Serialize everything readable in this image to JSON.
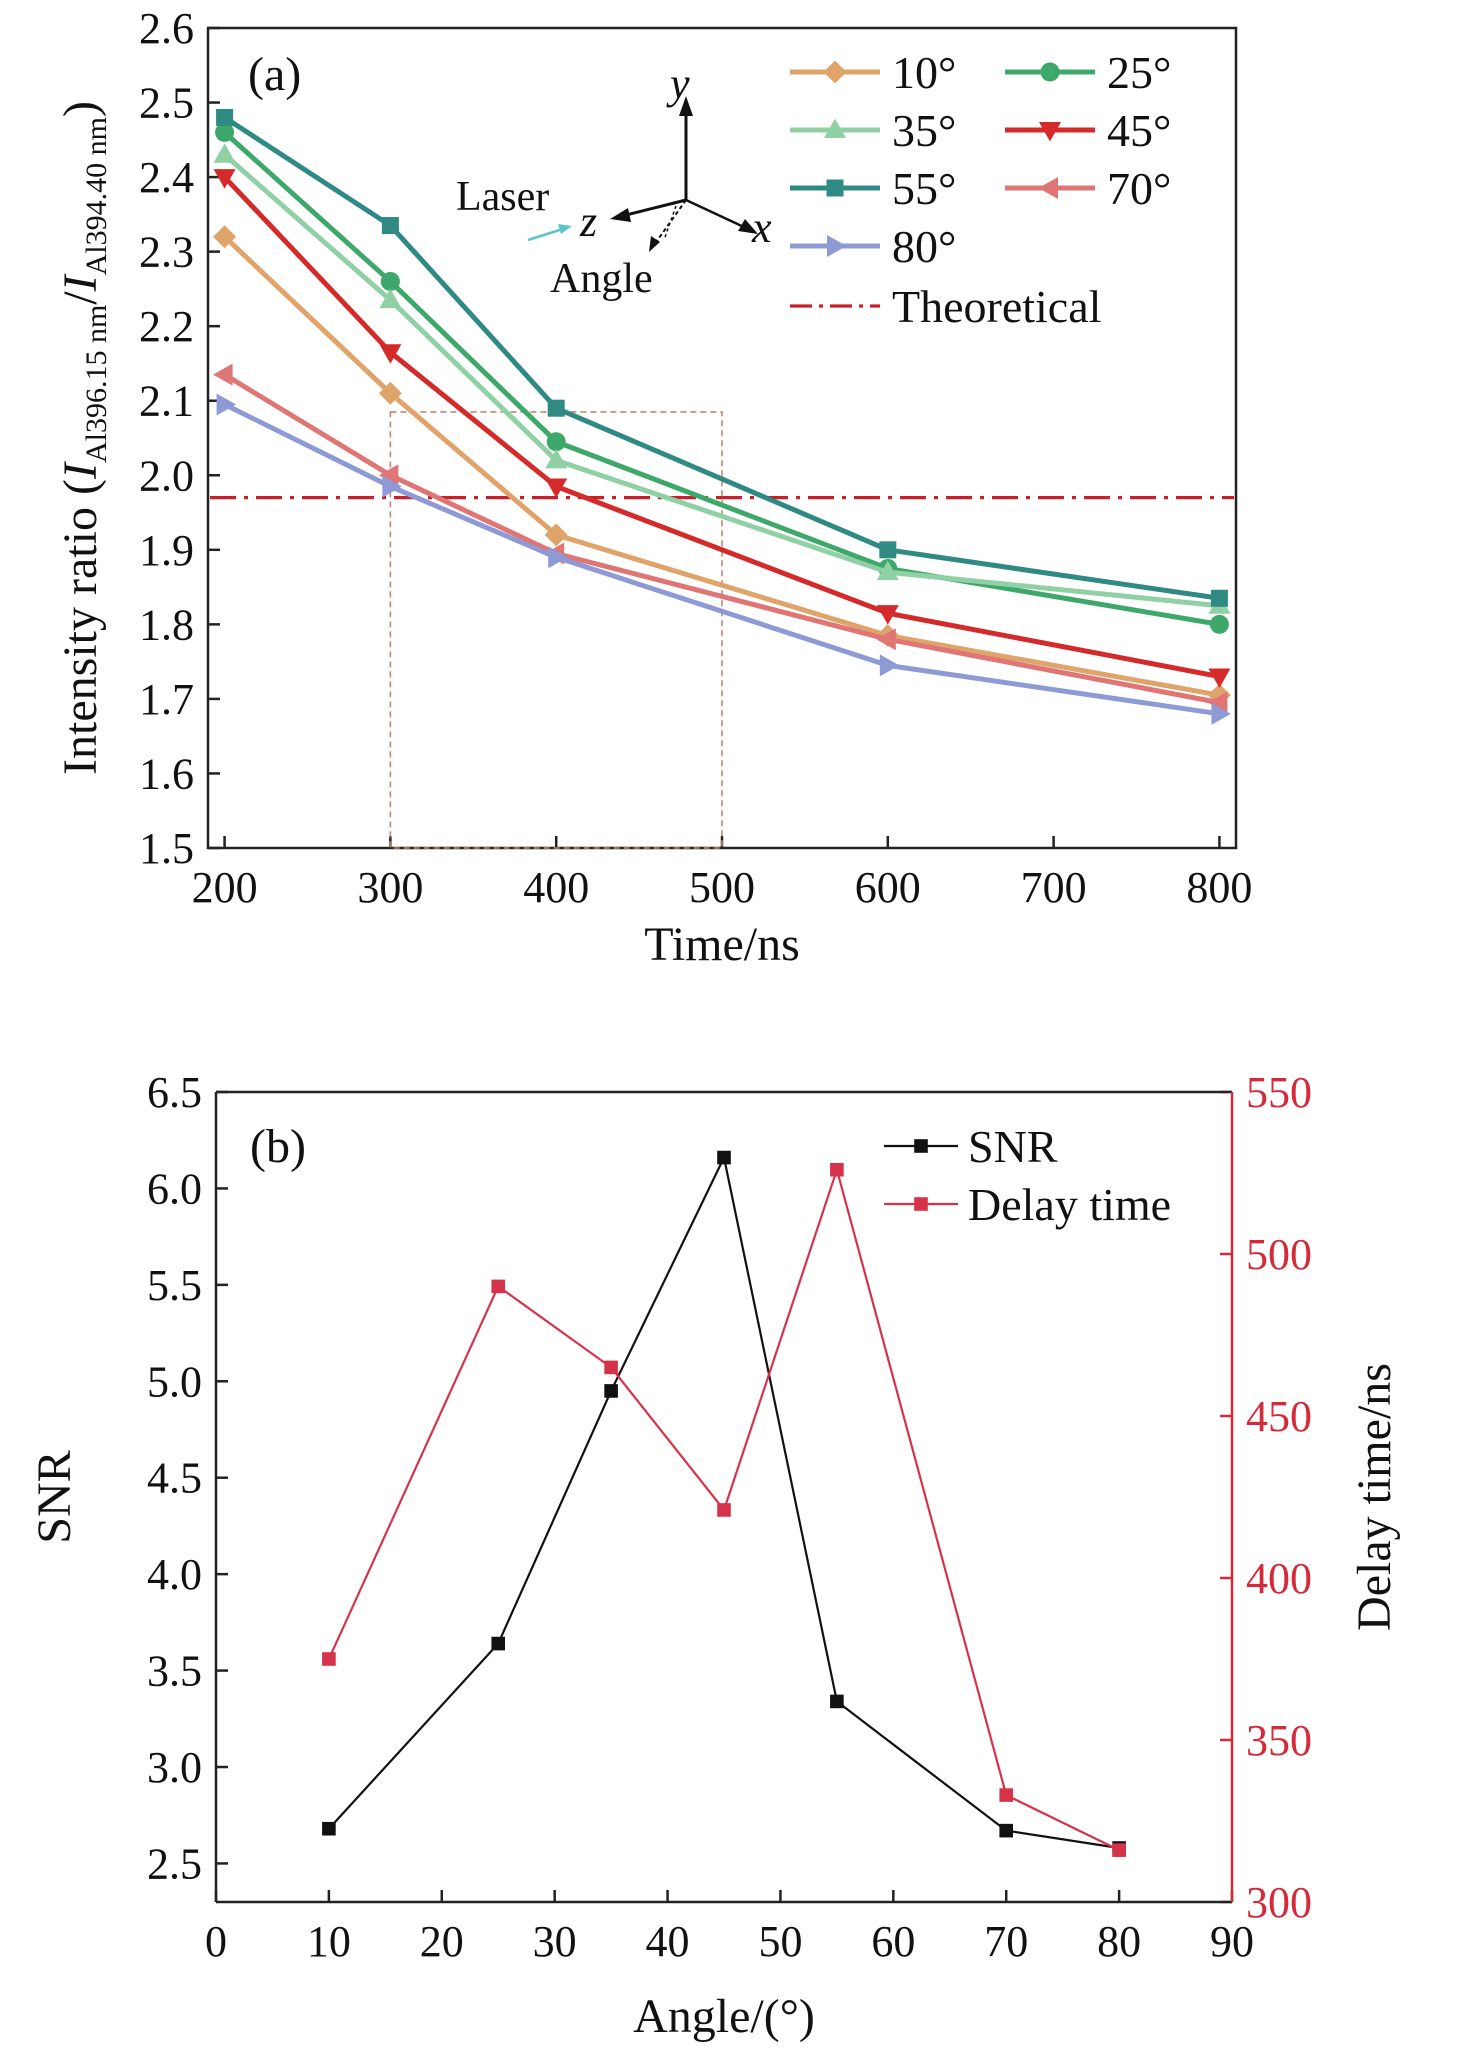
{
  "chart_data": [
    {
      "type": "line",
      "panel_label": "(a)",
      "xlabel": "Time/ns",
      "ylabel": {
        "prefix": "Intensity ratio (",
        "i1": "I",
        "sub1": "Al396.15 nm",
        "slash": "/",
        "i2": "I",
        "sub2": "Al394.40 nm",
        "suffix": ")"
      },
      "xlim": [
        190,
        810
      ],
      "ylim": [
        1.5,
        2.6
      ],
      "xticks": [
        "200",
        "300",
        "400",
        "500",
        "600",
        "700",
        "800"
      ],
      "yticks": [
        "1.5",
        "1.6",
        "1.7",
        "1.8",
        "1.9",
        "2.0",
        "2.1",
        "2.2",
        "2.3",
        "2.4",
        "2.5",
        "2.6"
      ],
      "x": [
        200,
        300,
        400,
        600,
        800
      ],
      "series": [
        {
          "name": "10°",
          "marker": "diamond",
          "color": "#E0A36A",
          "values": [
            2.32,
            2.11,
            1.92,
            1.785,
            1.705
          ]
        },
        {
          "name": "25°",
          "marker": "circle",
          "color": "#3DA86A",
          "values": [
            2.46,
            2.26,
            2.045,
            1.875,
            1.8
          ]
        },
        {
          "name": "35°",
          "marker": "triangle-up",
          "color": "#8FD0A5",
          "values": [
            2.43,
            2.235,
            2.02,
            1.87,
            1.825
          ]
        },
        {
          "name": "45°",
          "marker": "triangle-down",
          "color": "#D42A2A",
          "values": [
            2.4,
            2.165,
            1.985,
            1.815,
            1.73
          ]
        },
        {
          "name": "55°",
          "marker": "square",
          "color": "#2E8A82",
          "values": [
            2.48,
            2.335,
            2.09,
            1.9,
            1.835
          ]
        },
        {
          "name": "70°",
          "marker": "triangle-left",
          "color": "#E07575",
          "values": [
            2.135,
            2.0,
            1.895,
            1.78,
            1.695
          ]
        },
        {
          "name": "80°",
          "marker": "triangle-right",
          "color": "#8E9AD6",
          "values": [
            2.095,
            1.985,
            1.89,
            1.745,
            1.68
          ]
        }
      ],
      "theoretical": {
        "name": "Theoretical",
        "value": 1.97,
        "color": "#C8202A"
      },
      "inset_box": {
        "x_range": [
          300,
          500
        ],
        "y_range": [
          1.5,
          2.085
        ],
        "color": "#C08870"
      },
      "axes_inset": {
        "x": "x",
        "y": "y",
        "z": "z",
        "laser": "Laser",
        "angle": "Angle"
      }
    },
    {
      "type": "line",
      "panel_label": "(b)",
      "xlabel": "Angle/(°)",
      "ylabel": "SNR",
      "ylabel_right": "Delay time/ns",
      "xlim": [
        0,
        90
      ],
      "ylim": [
        2.3,
        6.5
      ],
      "ylim_right": [
        300,
        550
      ],
      "xticks": [
        "0",
        "10",
        "20",
        "30",
        "40",
        "50",
        "60",
        "70",
        "80",
        "90"
      ],
      "yticks": [
        "2.5",
        "3.0",
        "3.5",
        "4.0",
        "4.5",
        "5.0",
        "5.5",
        "6.0",
        "6.5"
      ],
      "yticks_right": [
        "300",
        "350",
        "400",
        "450",
        "500",
        "550"
      ],
      "x": [
        10,
        25,
        35,
        45,
        55,
        70,
        80
      ],
      "series": [
        {
          "name": "SNR",
          "axis": "left",
          "color": "#111111",
          "marker": "square",
          "values": [
            2.68,
            3.64,
            4.95,
            6.16,
            3.34,
            2.67,
            2.58
          ]
        },
        {
          "name": "Delay time",
          "axis": "right",
          "color": "#D6334A",
          "marker": "square",
          "values": [
            375,
            490,
            465,
            421,
            526,
            333,
            316
          ]
        }
      ],
      "right_axis_color": "#D42A3A"
    }
  ]
}
